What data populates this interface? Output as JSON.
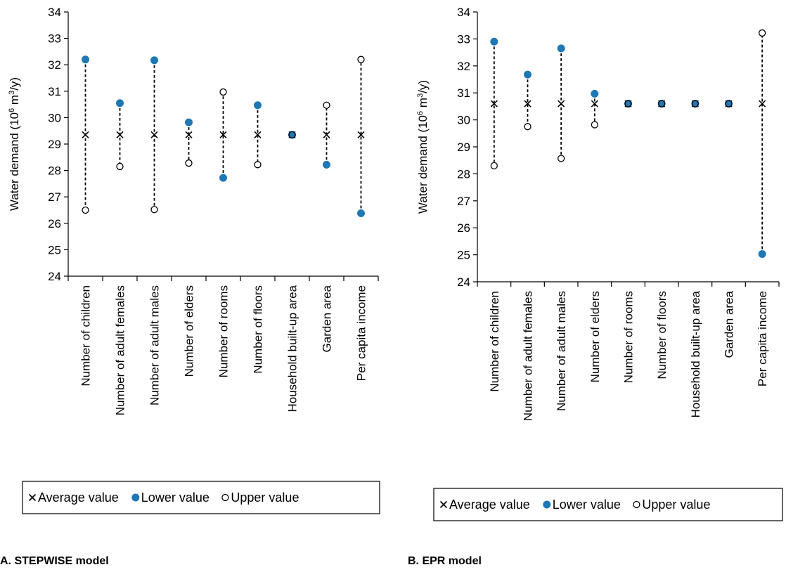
{
  "colors": {
    "lower_marker": "#1f77b4",
    "line": "#000000",
    "axis": "#000000"
  },
  "chart_data": [
    {
      "type": "scatter",
      "panel_label": "A. STEPWISE model",
      "ylabel": "Water demand (10",
      "ylabel_sup": "6",
      "ylabel_unit": " m",
      "ylabel_unit_sup": "3",
      "ylabel_tail": "/y)",
      "ylim": [
        24,
        34
      ],
      "yticks": [
        "24",
        "25",
        "26",
        "27",
        "28",
        "29",
        "30",
        "31",
        "32",
        "33",
        "34"
      ],
      "categories": [
        "Number of children",
        "Number of adult females",
        "Number of adult males",
        "Number of elders",
        "Number of rooms",
        "Number of floors",
        "Household built-up area",
        "Garden area",
        "Per capita income"
      ],
      "series": [
        {
          "name": "Average value",
          "marker": "x",
          "values": [
            29.35,
            29.35,
            29.35,
            29.35,
            29.35,
            29.35,
            29.35,
            29.35,
            29.35
          ]
        },
        {
          "name": "Lower value",
          "marker": "filled-circle",
          "values": [
            32.2,
            30.55,
            32.17,
            29.82,
            27.72,
            30.47,
            29.35,
            28.22,
            26.38
          ]
        },
        {
          "name": "Upper value",
          "marker": "open-circle",
          "values": [
            26.5,
            28.15,
            26.52,
            28.28,
            30.97,
            28.22,
            29.35,
            30.47,
            32.2
          ]
        }
      ],
      "legend": [
        "Average value",
        "Lower value",
        "Upper value"
      ]
    },
    {
      "type": "scatter",
      "panel_label": "B. EPR model",
      "ylabel": "Water demand (10",
      "ylabel_sup": "6",
      "ylabel_unit": " m",
      "ylabel_unit_sup": "3",
      "ylabel_tail": "/y)",
      "ylim": [
        24,
        34
      ],
      "yticks": [
        "24",
        "25",
        "26",
        "27",
        "28",
        "29",
        "30",
        "31",
        "32",
        "33",
        "34"
      ],
      "categories": [
        "Number of children",
        "Number of adult females",
        "Number of adult males",
        "Number of elders",
        "Number of rooms",
        "Number of floors",
        "Household built-up area",
        "Garden area",
        "Per capita income"
      ],
      "series": [
        {
          "name": "Average value",
          "marker": "x",
          "values": [
            30.6,
            30.6,
            30.6,
            30.6,
            30.6,
            30.6,
            30.6,
            30.6,
            30.6
          ]
        },
        {
          "name": "Lower value",
          "marker": "filled-circle",
          "values": [
            32.9,
            31.68,
            32.65,
            30.97,
            30.6,
            30.6,
            30.6,
            30.6,
            25.03
          ]
        },
        {
          "name": "Upper value",
          "marker": "open-circle",
          "values": [
            28.3,
            29.75,
            28.57,
            29.82,
            30.6,
            30.6,
            30.6,
            30.6,
            33.22
          ]
        }
      ],
      "legend": [
        "Average value",
        "Lower value",
        "Upper value"
      ]
    }
  ]
}
